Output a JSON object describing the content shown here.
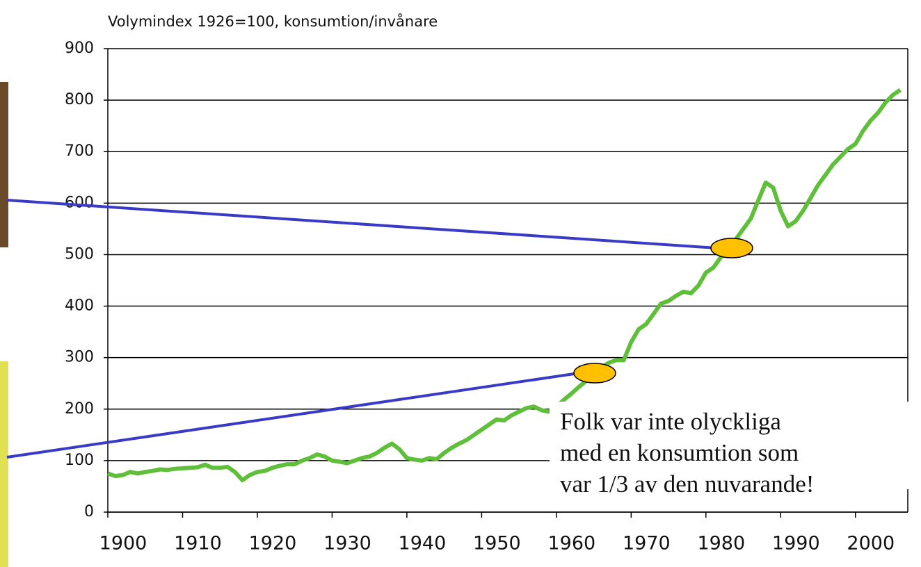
{
  "chart_data": {
    "type": "line",
    "title": "Volymindex 1926=100, konsumtion/invånare",
    "annotation": [
      "Folk var inte olyckliga",
      "med en konsumtion som",
      "var 1/3 av den nuvarande!"
    ],
    "x": [
      1900,
      1901,
      1902,
      1903,
      1904,
      1905,
      1906,
      1907,
      1908,
      1909,
      1910,
      1911,
      1912,
      1913,
      1914,
      1915,
      1916,
      1917,
      1918,
      1919,
      1920,
      1921,
      1922,
      1923,
      1924,
      1925,
      1926,
      1927,
      1928,
      1929,
      1930,
      1931,
      1932,
      1933,
      1934,
      1935,
      1936,
      1937,
      1938,
      1939,
      1940,
      1941,
      1942,
      1943,
      1944,
      1945,
      1946,
      1947,
      1948,
      1949,
      1950,
      1951,
      1952,
      1953,
      1954,
      1955,
      1956,
      1957,
      1958,
      1959,
      1960,
      1961,
      1962,
      1963,
      1964,
      1965,
      1966,
      1967,
      1968,
      1969,
      1970,
      1971,
      1972,
      1973,
      1974,
      1975,
      1976,
      1977,
      1978,
      1979,
      1980,
      1981,
      1982,
      1983,
      1984,
      1985,
      1986,
      1987,
      1988,
      1989,
      1990,
      1991,
      1992,
      1993,
      1994,
      1995,
      1996,
      1997,
      1998,
      1999,
      2000,
      2001,
      2002,
      2003,
      2004,
      2005,
      2006
    ],
    "values": [
      75,
      70,
      72,
      78,
      75,
      78,
      80,
      83,
      82,
      84,
      85,
      86,
      87,
      92,
      86,
      86,
      88,
      78,
      62,
      72,
      78,
      80,
      86,
      90,
      93,
      93,
      100,
      105,
      112,
      108,
      100,
      98,
      95,
      100,
      105,
      108,
      115,
      125,
      133,
      122,
      105,
      102,
      100,
      105,
      103,
      115,
      125,
      133,
      140,
      150,
      160,
      170,
      180,
      178,
      188,
      195,
      202,
      205,
      198,
      195,
      205,
      218,
      230,
      243,
      255,
      268,
      280,
      290,
      295,
      295,
      330,
      355,
      365,
      385,
      405,
      410,
      420,
      428,
      425,
      440,
      465,
      475,
      495,
      510,
      530,
      550,
      570,
      605,
      640,
      630,
      585,
      555,
      565,
      585,
      610,
      635,
      655,
      675,
      690,
      705,
      715,
      740,
      760,
      775,
      795,
      810,
      820
    ],
    "color": "#5fbf3a",
    "xlim": [
      1900,
      2007
    ],
    "xticks": [
      1900,
      1910,
      1920,
      1930,
      1940,
      1950,
      1960,
      1970,
      1980,
      1990,
      2000
    ],
    "ylim": [
      0,
      900
    ],
    "yticks": [
      0,
      100,
      200,
      300,
      400,
      500,
      600,
      700,
      800,
      900
    ],
    "grid": true
  }
}
